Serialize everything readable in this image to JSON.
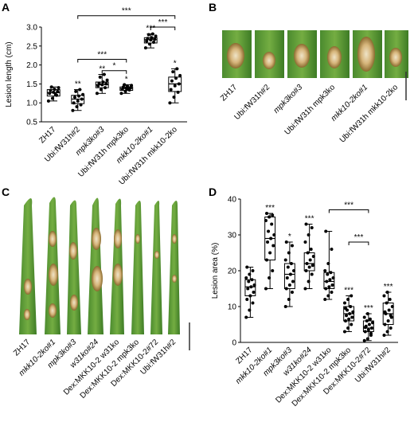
{
  "panels": {
    "A": "A",
    "B": "B",
    "C": "C",
    "D": "D"
  },
  "chart_data": [
    {
      "type": "box",
      "panel": "A",
      "ylabel": "Lesion length (cm)",
      "ylim": [
        0.5,
        3.0
      ],
      "yticks": [
        "0.5",
        "1.0",
        "1.5",
        "2.0",
        "2.5",
        "3.0"
      ],
      "categories": [
        {
          "label": "ZH17",
          "italic": false
        },
        {
          "label": "Ubi:fW31h#2",
          "italic": false
        },
        {
          "label": "mpk3ko#3",
          "italic": true
        },
        {
          "label": "Ubi:fW31h mpk3ko",
          "italic": false
        },
        {
          "label": "mkk10-2ko#1",
          "italic": true
        },
        {
          "label": "Ubi:fW31h mkk10-2ko",
          "italic": false
        }
      ],
      "series": [
        {
          "q1": 1.18,
          "median": 1.27,
          "q3": 1.35,
          "min": 1.05,
          "max": 1.42,
          "sig": "",
          "points": [
            1.05,
            1.12,
            1.2,
            1.25,
            1.28,
            1.3,
            1.33,
            1.36,
            1.4,
            1.42,
            1.22
          ]
        },
        {
          "q1": 0.98,
          "median": 1.1,
          "q3": 1.2,
          "min": 0.8,
          "max": 1.35,
          "sig": "**",
          "points": [
            0.8,
            0.9,
            0.95,
            1.0,
            1.05,
            1.1,
            1.15,
            1.18,
            1.22,
            1.3,
            1.35
          ]
        },
        {
          "q1": 1.4,
          "median": 1.48,
          "q3": 1.55,
          "min": 1.25,
          "max": 1.75,
          "sig": "**",
          "points": [
            1.25,
            1.35,
            1.4,
            1.45,
            1.48,
            1.5,
            1.52,
            1.55,
            1.6,
            1.68,
            1.75
          ]
        },
        {
          "q1": 1.33,
          "median": 1.38,
          "q3": 1.42,
          "min": 1.25,
          "max": 1.48,
          "sig": "*",
          "points": [
            1.25,
            1.3,
            1.34,
            1.36,
            1.38,
            1.4,
            1.42,
            1.44,
            1.46,
            1.48,
            1.37
          ]
        },
        {
          "q1": 2.58,
          "median": 2.67,
          "q3": 2.72,
          "min": 2.45,
          "max": 2.82,
          "sig": "***",
          "points": [
            2.45,
            2.55,
            2.6,
            2.63,
            2.66,
            2.68,
            2.7,
            2.72,
            2.76,
            2.8,
            2.82
          ]
        },
        {
          "q1": 1.3,
          "median": 1.5,
          "q3": 1.68,
          "min": 1.0,
          "max": 1.9,
          "sig": "*",
          "points": [
            1.0,
            1.15,
            1.28,
            1.35,
            1.45,
            1.5,
            1.58,
            1.65,
            1.72,
            1.82,
            1.9
          ]
        }
      ],
      "comparisons": [
        {
          "from": 1,
          "to": 5,
          "label": "***",
          "y": 3.3
        },
        {
          "from": 1,
          "to": 3,
          "label": "***",
          "y": 2.15
        },
        {
          "from": 2,
          "to": 3,
          "label": "*",
          "y": 1.85
        },
        {
          "from": 4,
          "to": 5,
          "label": "***",
          "y": 3.0
        }
      ]
    },
    {
      "type": "box",
      "panel": "D",
      "ylabel": "Lesion area (%)",
      "ylim": [
        0,
        40
      ],
      "yticks": [
        "0",
        "10",
        "20",
        "30",
        "40"
      ],
      "categories": [
        {
          "label": "ZH17",
          "italic": false
        },
        {
          "label": "mkk10-2ko#1",
          "italic": true
        },
        {
          "label": "mpk3ko#3",
          "italic": true
        },
        {
          "label": "w31ko#24",
          "italic": true
        },
        {
          "label": "Dex:MKK10-2 w31ko",
          "italic": false
        },
        {
          "label": "Dex:MKK10-2 mpk3ko",
          "italic": false
        },
        {
          "label": "Dex:MKK10-2#72",
          "italic": false
        },
        {
          "label": "Ubi:fW31h#2",
          "italic": false
        }
      ],
      "series": [
        {
          "q1": 13,
          "median": 15.5,
          "q3": 17.5,
          "min": 7,
          "max": 21,
          "sig": "",
          "points": [
            7,
            9,
            11,
            12,
            13,
            14,
            15,
            15.5,
            16,
            17,
            17.5,
            18,
            19,
            20,
            21
          ]
        },
        {
          "q1": 23,
          "median": 29,
          "q3": 35,
          "min": 15,
          "max": 36,
          "sig": "***",
          "points": [
            15,
            18,
            20,
            23,
            25,
            27,
            28,
            29,
            30,
            31,
            33,
            34,
            35,
            35.5,
            36
          ]
        },
        {
          "q1": 15,
          "median": 19,
          "q3": 22,
          "min": 10,
          "max": 28,
          "sig": "*",
          "points": [
            10,
            12,
            14,
            15,
            16,
            17,
            18,
            19,
            20,
            21,
            22,
            23,
            25,
            27,
            28
          ]
        },
        {
          "q1": 20,
          "median": 22,
          "q3": 25,
          "min": 15,
          "max": 33,
          "sig": "***",
          "points": [
            15,
            17,
            19,
            20,
            21,
            21.5,
            22,
            23,
            24,
            25,
            26,
            28,
            30,
            32,
            33
          ]
        },
        {
          "q1": 15,
          "median": 17,
          "q3": 19.5,
          "min": 12,
          "max": 31,
          "sig": "",
          "points": [
            12,
            13,
            14,
            15,
            15.5,
            16,
            17,
            17.5,
            18,
            19,
            19.5,
            20,
            22,
            26,
            31
          ]
        },
        {
          "q1": 6,
          "median": 8,
          "q3": 10,
          "min": 3,
          "max": 13,
          "sig": "***",
          "points": [
            3,
            4,
            5,
            6,
            6.5,
            7,
            7.5,
            8,
            8.5,
            9,
            10,
            11,
            12,
            13,
            9.5
          ]
        },
        {
          "q1": 3,
          "median": 4,
          "q3": 6,
          "min": 0.5,
          "max": 8,
          "sig": "***",
          "points": [
            0.5,
            1,
            2,
            3,
            3.5,
            4,
            4.5,
            5,
            5.5,
            6,
            6.5,
            7,
            8,
            2.5,
            4.2
          ]
        },
        {
          "q1": 5,
          "median": 8,
          "q3": 11,
          "min": 2,
          "max": 14,
          "sig": "***",
          "points": [
            2,
            3,
            4,
            5,
            6,
            7,
            8,
            9,
            10,
            11,
            12,
            13,
            14,
            7.5,
            8.5
          ]
        }
      ],
      "comparisons": [
        {
          "from": 4,
          "to": 6,
          "label": "***",
          "y": 37
        },
        {
          "from": 5,
          "to": 6,
          "label": "***",
          "y": 28
        }
      ]
    }
  ],
  "panelB": {
    "labels": [
      {
        "label": "ZH17",
        "italic": false
      },
      {
        "label": "Ubi:fW31h#2",
        "italic": false
      },
      {
        "label": "mpk3ko#3",
        "italic": true
      },
      {
        "label": "Ubi:fW31h mpk3ko",
        "italic": false
      },
      {
        "label": "mkk10-2ko#1",
        "italic": true
      },
      {
        "label": "Ubi:fW31h mkk10-2ko",
        "italic": false
      }
    ]
  },
  "panelC": {
    "labels": [
      {
        "label": "ZH17",
        "italic": false
      },
      {
        "label": "mkk10-2ko#1",
        "italic": true
      },
      {
        "label": "mpk3ko#3",
        "italic": true
      },
      {
        "label": "w31ko#24",
        "italic": true
      },
      {
        "label": "Dex:MKK10-2 w31ko",
        "italic": false
      },
      {
        "label": "Dex:MKK10-2 mpk3ko",
        "italic": false
      },
      {
        "label": "Dex:MKK10-2#72",
        "italic": false
      },
      {
        "label": "Ubi:fW31h#2",
        "italic": false
      }
    ]
  },
  "colors": {
    "leaf_dark": "#3f7d2a",
    "leaf_light": "#7fb548",
    "lesion": "#c89a55",
    "lesion_core": "#e9dcc0",
    "box_line": "#000000"
  }
}
